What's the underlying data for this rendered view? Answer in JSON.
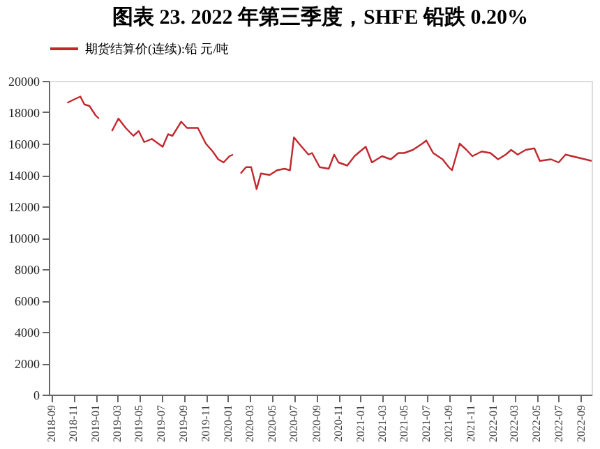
{
  "chart_data": {
    "type": "line",
    "title": "图表 23. 2022 年第三季度，SHFE 铅跌 0.20%",
    "xlim": [
      "2018-08-25",
      "2022-09-30"
    ],
    "xticks": [
      "2018-09",
      "2018-11",
      "2019-01",
      "2019-03",
      "2019-05",
      "2019-07",
      "2019-09",
      "2019-11",
      "2020-01",
      "2020-03",
      "2020-05",
      "2020-07",
      "2020-09",
      "2020-11",
      "2021-01",
      "2021-03",
      "2021-05",
      "2021-07",
      "2021-09",
      "2021-11",
      "2022-01",
      "2022-03",
      "2022-05",
      "2022-07",
      "2022-09"
    ],
    "ylim": [
      0,
      20000
    ],
    "yticks": [
      0,
      2000,
      4000,
      6000,
      8000,
      10000,
      12000,
      14000,
      16000,
      18000,
      20000
    ],
    "grid": false,
    "legend": "top",
    "line_style": "solid",
    "marker": "none",
    "x": [
      "2018-10-15",
      "2018-11-01",
      "2018-11-20",
      "2018-12-01",
      "2018-12-15",
      "2019-01-01",
      "2019-01-10",
      "2019-02-05",
      "2019-02-15",
      "2019-03-05",
      "2019-03-25",
      "2019-04-15",
      "2019-04-30",
      "2019-05-15",
      "2019-06-05",
      "2019-07-05",
      "2019-07-20",
      "2019-08-01",
      "2019-08-25",
      "2019-09-10",
      "2019-10-10",
      "2019-11-01",
      "2019-11-20",
      "2019-12-05",
      "2019-12-20",
      "2020-01-05",
      "2020-01-15",
      "2020-01-25",
      "2020-02-05",
      "2020-02-20",
      "2020-03-05",
      "2020-03-20",
      "2020-04-01",
      "2020-04-25",
      "2020-05-15",
      "2020-06-05",
      "2020-06-20",
      "2020-07-01",
      "2020-07-15",
      "2020-08-10",
      "2020-08-20",
      "2020-09-10",
      "2020-10-05",
      "2020-10-20",
      "2020-11-01",
      "2020-11-25",
      "2020-12-15",
      "2020-12-25",
      "2021-01-15",
      "2021-02-01",
      "2021-03-01",
      "2021-03-25",
      "2021-04-15",
      "2021-05-01",
      "2021-05-25",
      "2021-06-20",
      "2021-07-01",
      "2021-07-20",
      "2021-08-15",
      "2021-09-01",
      "2021-09-10",
      "2021-10-01",
      "2021-10-20",
      "2021-11-05",
      "2021-12-01",
      "2021-12-25",
      "2022-01-15",
      "2022-02-05",
      "2022-02-20",
      "2022-03-10",
      "2022-04-01",
      "2022-04-25",
      "2022-05-10",
      "2022-06-10",
      "2022-07-01",
      "2022-07-20",
      "2022-08-25",
      "2022-09-30"
    ],
    "series": [
      {
        "name": "期货结算价(连续):铅 元/吨",
        "color": "#c0282d",
        "values": [
          18600,
          18800,
          19000,
          18500,
          18400,
          17800,
          17600,
          null,
          16800,
          17600,
          17000,
          16500,
          16800,
          16100,
          16300,
          15800,
          16600,
          16500,
          17400,
          17000,
          17000,
          16000,
          15500,
          15000,
          14800,
          15200,
          15300,
          null,
          14100,
          14500,
          14500,
          13100,
          14100,
          14000,
          14300,
          14400,
          14300,
          16400,
          16000,
          15300,
          15400,
          14500,
          14400,
          15300,
          14800,
          14600,
          15200,
          15400,
          15800,
          14800,
          15200,
          15000,
          15400,
          15400,
          15600,
          16000,
          16200,
          15400,
          15000,
          14500,
          14300,
          16000,
          15600,
          15200,
          15500,
          15400,
          15000,
          15300,
          15600,
          15300,
          15600,
          15700,
          14900,
          15000,
          14800,
          15300,
          15100,
          14900
        ]
      }
    ]
  }
}
